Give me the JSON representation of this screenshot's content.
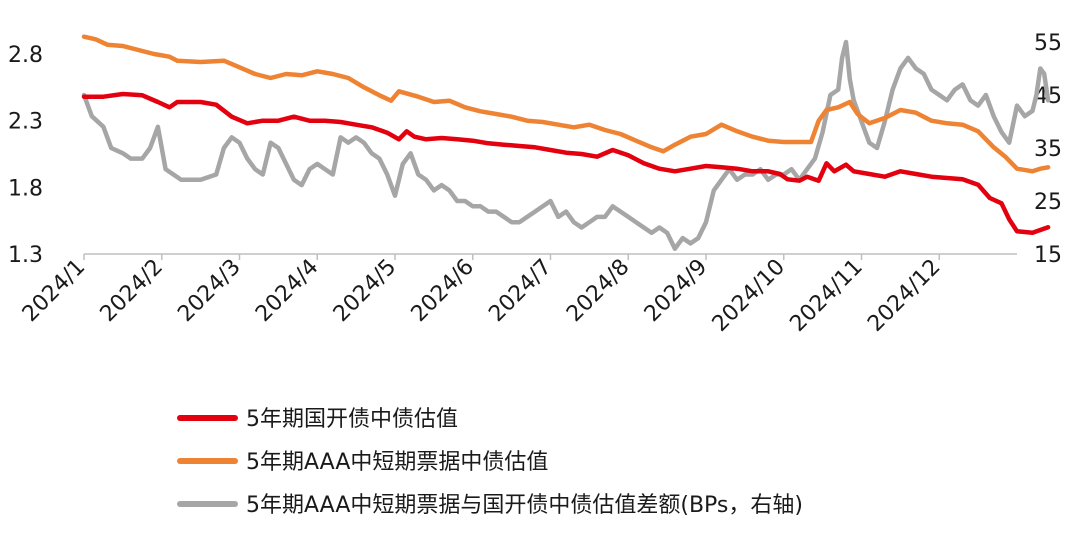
{
  "chart_data": {
    "type": "line",
    "x_labels": [
      "2024/1",
      "2024/2",
      "2024/3",
      "2024/4",
      "2024/5",
      "2024/6",
      "2024/7",
      "2024/8",
      "2024/9",
      "2024/10",
      "2024/11",
      "2024/12"
    ],
    "x_range": [
      0,
      12
    ],
    "y_left": {
      "ticks": [
        "1.3",
        "1.8",
        "2.3",
        "2.8"
      ],
      "range": [
        1.3,
        2.8
      ]
    },
    "y_right": {
      "ticks": [
        "15",
        "25",
        "35",
        "45",
        "55"
      ],
      "range": [
        15,
        55
      ]
    },
    "grid": false,
    "legend_position": "bottom",
    "series": [
      {
        "name": "5年期国开债中债估值",
        "axis": "left",
        "color": "#e3000f",
        "points": [
          [
            0.0,
            2.48
          ],
          [
            0.25,
            2.48
          ],
          [
            0.5,
            2.5
          ],
          [
            0.75,
            2.49
          ],
          [
            0.95,
            2.44
          ],
          [
            1.1,
            2.4
          ],
          [
            1.2,
            2.44
          ],
          [
            1.5,
            2.44
          ],
          [
            1.7,
            2.42
          ],
          [
            1.9,
            2.33
          ],
          [
            2.1,
            2.28
          ],
          [
            2.3,
            2.3
          ],
          [
            2.5,
            2.3
          ],
          [
            2.7,
            2.33
          ],
          [
            2.9,
            2.3
          ],
          [
            3.1,
            2.3
          ],
          [
            3.3,
            2.29
          ],
          [
            3.5,
            2.27
          ],
          [
            3.7,
            2.25
          ],
          [
            3.9,
            2.21
          ],
          [
            4.05,
            2.16
          ],
          [
            4.15,
            2.22
          ],
          [
            4.25,
            2.18
          ],
          [
            4.4,
            2.16
          ],
          [
            4.6,
            2.17
          ],
          [
            4.8,
            2.16
          ],
          [
            5.0,
            2.15
          ],
          [
            5.2,
            2.13
          ],
          [
            5.4,
            2.12
          ],
          [
            5.6,
            2.11
          ],
          [
            5.8,
            2.1
          ],
          [
            6.0,
            2.08
          ],
          [
            6.2,
            2.06
          ],
          [
            6.4,
            2.05
          ],
          [
            6.6,
            2.03
          ],
          [
            6.8,
            2.08
          ],
          [
            7.0,
            2.04
          ],
          [
            7.2,
            1.98
          ],
          [
            7.4,
            1.94
          ],
          [
            7.6,
            1.92
          ],
          [
            7.8,
            1.94
          ],
          [
            8.0,
            1.96
          ],
          [
            8.2,
            1.95
          ],
          [
            8.4,
            1.94
          ],
          [
            8.6,
            1.92
          ],
          [
            8.8,
            1.92
          ],
          [
            8.95,
            1.9
          ],
          [
            9.05,
            1.86
          ],
          [
            9.2,
            1.85
          ],
          [
            9.3,
            1.88
          ],
          [
            9.45,
            1.85
          ],
          [
            9.55,
            1.98
          ],
          [
            9.65,
            1.92
          ],
          [
            9.8,
            1.97
          ],
          [
            9.9,
            1.92
          ],
          [
            10.1,
            1.9
          ],
          [
            10.3,
            1.88
          ],
          [
            10.5,
            1.92
          ],
          [
            10.7,
            1.9
          ],
          [
            10.9,
            1.88
          ],
          [
            11.1,
            1.87
          ],
          [
            11.3,
            1.86
          ],
          [
            11.5,
            1.82
          ],
          [
            11.65,
            1.72
          ],
          [
            11.8,
            1.68
          ],
          [
            11.9,
            1.56
          ],
          [
            12.0,
            1.47
          ],
          [
            12.2,
            1.46
          ],
          [
            12.3,
            1.48
          ],
          [
            12.4,
            1.5
          ]
        ]
      },
      {
        "name": "5年期AAA中短期票据中债估值",
        "axis": "left",
        "color": "#ee8433",
        "points": [
          [
            0.0,
            2.93
          ],
          [
            0.15,
            2.91
          ],
          [
            0.3,
            2.87
          ],
          [
            0.5,
            2.86
          ],
          [
            0.7,
            2.83
          ],
          [
            0.9,
            2.8
          ],
          [
            1.1,
            2.78
          ],
          [
            1.2,
            2.75
          ],
          [
            1.5,
            2.74
          ],
          [
            1.8,
            2.75
          ],
          [
            2.0,
            2.7
          ],
          [
            2.2,
            2.65
          ],
          [
            2.4,
            2.62
          ],
          [
            2.6,
            2.65
          ],
          [
            2.8,
            2.64
          ],
          [
            3.0,
            2.67
          ],
          [
            3.2,
            2.65
          ],
          [
            3.4,
            2.62
          ],
          [
            3.6,
            2.55
          ],
          [
            3.8,
            2.49
          ],
          [
            3.95,
            2.45
          ],
          [
            4.05,
            2.52
          ],
          [
            4.3,
            2.48
          ],
          [
            4.5,
            2.44
          ],
          [
            4.7,
            2.45
          ],
          [
            4.9,
            2.4
          ],
          [
            5.1,
            2.37
          ],
          [
            5.3,
            2.35
          ],
          [
            5.5,
            2.33
          ],
          [
            5.7,
            2.3
          ],
          [
            5.9,
            2.29
          ],
          [
            6.1,
            2.27
          ],
          [
            6.3,
            2.25
          ],
          [
            6.5,
            2.27
          ],
          [
            6.7,
            2.23
          ],
          [
            6.9,
            2.2
          ],
          [
            7.1,
            2.15
          ],
          [
            7.3,
            2.1
          ],
          [
            7.45,
            2.07
          ],
          [
            7.6,
            2.12
          ],
          [
            7.8,
            2.18
          ],
          [
            8.0,
            2.2
          ],
          [
            8.2,
            2.27
          ],
          [
            8.4,
            2.22
          ],
          [
            8.6,
            2.18
          ],
          [
            8.8,
            2.15
          ],
          [
            9.0,
            2.14
          ],
          [
            9.2,
            2.14
          ],
          [
            9.35,
            2.14
          ],
          [
            9.45,
            2.3
          ],
          [
            9.55,
            2.38
          ],
          [
            9.7,
            2.4
          ],
          [
            9.85,
            2.44
          ],
          [
            9.95,
            2.35
          ],
          [
            10.1,
            2.28
          ],
          [
            10.3,
            2.32
          ],
          [
            10.5,
            2.38
          ],
          [
            10.7,
            2.36
          ],
          [
            10.9,
            2.3
          ],
          [
            11.1,
            2.28
          ],
          [
            11.3,
            2.27
          ],
          [
            11.5,
            2.22
          ],
          [
            11.7,
            2.1
          ],
          [
            11.85,
            2.03
          ],
          [
            12.0,
            1.94
          ],
          [
            12.2,
            1.92
          ],
          [
            12.3,
            1.94
          ],
          [
            12.4,
            1.95
          ]
        ]
      },
      {
        "name": "5年期AAA中短期票据与国开债中债估值差额(BPs，右轴)",
        "axis": "right",
        "color": "#a6a6a6",
        "points": [
          [
            0.0,
            45
          ],
          [
            0.1,
            41
          ],
          [
            0.25,
            39
          ],
          [
            0.35,
            35
          ],
          [
            0.5,
            34
          ],
          [
            0.6,
            33
          ],
          [
            0.75,
            33
          ],
          [
            0.85,
            35
          ],
          [
            0.95,
            39
          ],
          [
            1.05,
            31
          ],
          [
            1.15,
            30
          ],
          [
            1.25,
            29
          ],
          [
            1.35,
            29
          ],
          [
            1.5,
            29
          ],
          [
            1.7,
            30
          ],
          [
            1.8,
            35
          ],
          [
            1.9,
            37
          ],
          [
            2.0,
            36
          ],
          [
            2.1,
            33
          ],
          [
            2.2,
            31
          ],
          [
            2.3,
            30
          ],
          [
            2.4,
            36
          ],
          [
            2.5,
            35
          ],
          [
            2.6,
            32
          ],
          [
            2.7,
            29
          ],
          [
            2.8,
            28
          ],
          [
            2.9,
            31
          ],
          [
            3.0,
            32
          ],
          [
            3.1,
            31
          ],
          [
            3.2,
            30
          ],
          [
            3.3,
            37
          ],
          [
            3.4,
            36
          ],
          [
            3.5,
            37
          ],
          [
            3.6,
            36
          ],
          [
            3.7,
            34
          ],
          [
            3.8,
            33
          ],
          [
            3.9,
            30
          ],
          [
            4.0,
            26
          ],
          [
            4.1,
            32
          ],
          [
            4.2,
            34
          ],
          [
            4.3,
            30
          ],
          [
            4.4,
            29
          ],
          [
            4.5,
            27
          ],
          [
            4.6,
            28
          ],
          [
            4.7,
            27
          ],
          [
            4.8,
            25
          ],
          [
            4.9,
            25
          ],
          [
            5.0,
            24
          ],
          [
            5.1,
            24
          ],
          [
            5.2,
            23
          ],
          [
            5.3,
            23
          ],
          [
            5.4,
            22
          ],
          [
            5.5,
            21
          ],
          [
            5.6,
            21
          ],
          [
            5.7,
            22
          ],
          [
            5.8,
            23
          ],
          [
            5.9,
            24
          ],
          [
            6.0,
            25
          ],
          [
            6.1,
            22
          ],
          [
            6.2,
            23
          ],
          [
            6.3,
            21
          ],
          [
            6.4,
            20
          ],
          [
            6.5,
            21
          ],
          [
            6.6,
            22
          ],
          [
            6.7,
            22
          ],
          [
            6.8,
            24
          ],
          [
            6.9,
            23
          ],
          [
            7.0,
            22
          ],
          [
            7.1,
            21
          ],
          [
            7.2,
            20
          ],
          [
            7.3,
            19
          ],
          [
            7.4,
            20
          ],
          [
            7.5,
            19
          ],
          [
            7.6,
            16
          ],
          [
            7.7,
            18
          ],
          [
            7.8,
            17
          ],
          [
            7.9,
            18
          ],
          [
            8.0,
            21
          ],
          [
            8.1,
            27
          ],
          [
            8.2,
            29
          ],
          [
            8.3,
            31
          ],
          [
            8.4,
            29
          ],
          [
            8.5,
            30
          ],
          [
            8.6,
            30
          ],
          [
            8.7,
            31
          ],
          [
            8.8,
            29
          ],
          [
            8.9,
            30
          ],
          [
            9.0,
            30
          ],
          [
            9.1,
            31
          ],
          [
            9.2,
            29
          ],
          [
            9.3,
            31
          ],
          [
            9.4,
            33
          ],
          [
            9.5,
            38
          ],
          [
            9.6,
            45
          ],
          [
            9.7,
            46
          ],
          [
            9.75,
            52
          ],
          [
            9.8,
            55
          ],
          [
            9.85,
            48
          ],
          [
            9.9,
            44
          ],
          [
            10.0,
            40
          ],
          [
            10.1,
            36
          ],
          [
            10.2,
            35
          ],
          [
            10.3,
            40
          ],
          [
            10.4,
            46
          ],
          [
            10.5,
            50
          ],
          [
            10.6,
            52
          ],
          [
            10.7,
            50
          ],
          [
            10.8,
            49
          ],
          [
            10.9,
            46
          ],
          [
            11.0,
            45
          ],
          [
            11.1,
            44
          ],
          [
            11.2,
            46
          ],
          [
            11.3,
            47
          ],
          [
            11.4,
            44
          ],
          [
            11.5,
            43
          ],
          [
            11.6,
            45
          ],
          [
            11.7,
            41
          ],
          [
            11.8,
            38
          ],
          [
            11.9,
            36
          ],
          [
            12.0,
            43
          ],
          [
            12.1,
            41
          ],
          [
            12.2,
            42
          ],
          [
            12.25,
            45
          ],
          [
            12.3,
            50
          ],
          [
            12.35,
            49
          ],
          [
            12.4,
            44
          ]
        ]
      }
    ]
  }
}
